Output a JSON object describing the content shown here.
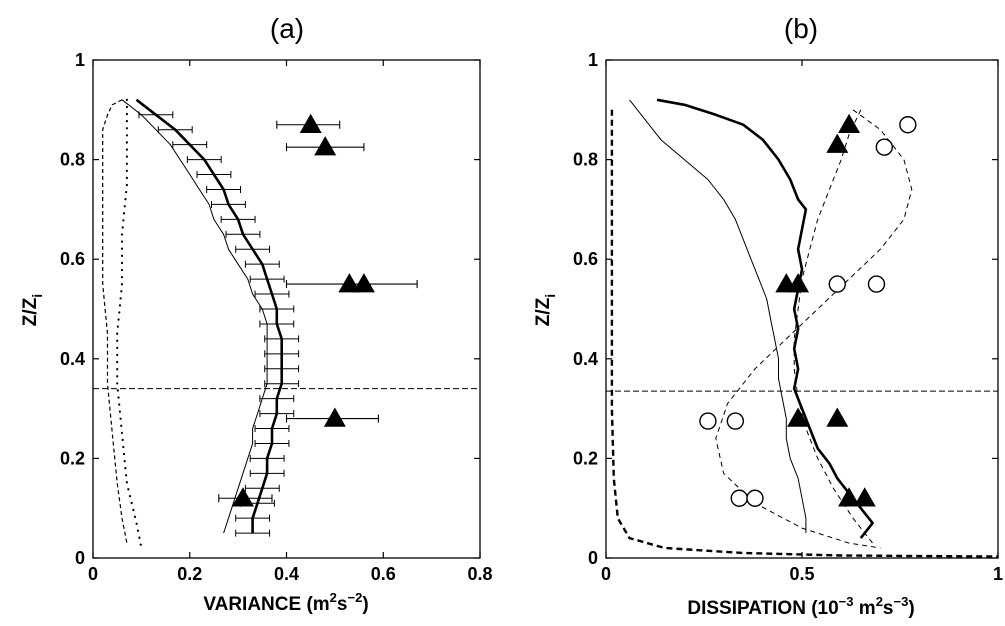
{
  "chart_data": [
    {
      "type": "line",
      "panel_label": "(a)",
      "xlabel_main": "VARIANCE (m",
      "xlabel_sup1": "2",
      "xlabel_mid": "s",
      "xlabel_sup2": "−2",
      "xlabel_end": ")",
      "ylabel_main": "Z/Z",
      "ylabel_sub": "i",
      "xlim": [
        0,
        0.8
      ],
      "ylim": [
        0,
        1
      ],
      "xticks": [
        "0",
        "0.2",
        "0.4",
        "0.6",
        "0.8"
      ],
      "yticks": [
        "0",
        "0.2",
        "0.4",
        "0.6",
        "0.8",
        "1"
      ],
      "xtick_values": [
        0,
        0.2,
        0.4,
        0.6,
        0.8
      ],
      "ytick_values": [
        0,
        0.2,
        0.4,
        0.6,
        0.8,
        1
      ],
      "hline_y": 0.34,
      "series": [
        {
          "style": "thick-solid",
          "points": [
            [
              0.09,
              0.92
            ],
            [
              0.13,
              0.89
            ],
            [
              0.17,
              0.86
            ],
            [
              0.2,
              0.83
            ],
            [
              0.23,
              0.8
            ],
            [
              0.25,
              0.77
            ],
            [
              0.27,
              0.74
            ],
            [
              0.28,
              0.71
            ],
            [
              0.3,
              0.68
            ],
            [
              0.31,
              0.65
            ],
            [
              0.33,
              0.62
            ],
            [
              0.35,
              0.59
            ],
            [
              0.36,
              0.56
            ],
            [
              0.37,
              0.53
            ],
            [
              0.38,
              0.5
            ],
            [
              0.38,
              0.47
            ],
            [
              0.39,
              0.44
            ],
            [
              0.39,
              0.41
            ],
            [
              0.39,
              0.38
            ],
            [
              0.39,
              0.35
            ],
            [
              0.38,
              0.32
            ],
            [
              0.38,
              0.29
            ],
            [
              0.37,
              0.26
            ],
            [
              0.37,
              0.23
            ],
            [
              0.36,
              0.2
            ],
            [
              0.36,
              0.17
            ],
            [
              0.35,
              0.14
            ],
            [
              0.34,
              0.11
            ],
            [
              0.33,
              0.08
            ],
            [
              0.33,
              0.05
            ]
          ]
        },
        {
          "style": "thin-solid",
          "points": [
            [
              0.06,
              0.92
            ],
            [
              0.1,
              0.89
            ],
            [
              0.13,
              0.86
            ],
            [
              0.16,
              0.83
            ],
            [
              0.18,
              0.8
            ],
            [
              0.2,
              0.77
            ],
            [
              0.22,
              0.74
            ],
            [
              0.24,
              0.71
            ],
            [
              0.25,
              0.68
            ],
            [
              0.27,
              0.65
            ],
            [
              0.28,
              0.62
            ],
            [
              0.3,
              0.59
            ],
            [
              0.32,
              0.56
            ],
            [
              0.33,
              0.53
            ],
            [
              0.35,
              0.5
            ],
            [
              0.36,
              0.47
            ],
            [
              0.36,
              0.44
            ],
            [
              0.36,
              0.41
            ],
            [
              0.36,
              0.38
            ],
            [
              0.36,
              0.35
            ],
            [
              0.35,
              0.32
            ],
            [
              0.34,
              0.29
            ],
            [
              0.33,
              0.26
            ],
            [
              0.33,
              0.23
            ],
            [
              0.32,
              0.2
            ],
            [
              0.31,
              0.17
            ],
            [
              0.3,
              0.14
            ],
            [
              0.29,
              0.11
            ],
            [
              0.28,
              0.08
            ],
            [
              0.27,
              0.05
            ]
          ]
        },
        {
          "style": "dashed",
          "points": [
            [
              0.06,
              0.92
            ],
            [
              0.04,
              0.91
            ],
            [
              0.03,
              0.89
            ],
            [
              0.02,
              0.86
            ],
            [
              0.02,
              0.82
            ],
            [
              0.02,
              0.75
            ],
            [
              0.02,
              0.65
            ],
            [
              0.02,
              0.55
            ],
            [
              0.03,
              0.45
            ],
            [
              0.03,
              0.35
            ],
            [
              0.04,
              0.25
            ],
            [
              0.05,
              0.15
            ],
            [
              0.06,
              0.08
            ],
            [
              0.07,
              0.03
            ]
          ]
        },
        {
          "style": "dotted",
          "points": [
            [
              0.07,
              0.92
            ],
            [
              0.07,
              0.85
            ],
            [
              0.07,
              0.75
            ],
            [
              0.06,
              0.65
            ],
            [
              0.06,
              0.55
            ],
            [
              0.05,
              0.45
            ],
            [
              0.05,
              0.35
            ],
            [
              0.06,
              0.25
            ],
            [
              0.07,
              0.15
            ],
            [
              0.09,
              0.07
            ],
            [
              0.1,
              0.02
            ]
          ]
        }
      ],
      "errorbars": {
        "y": [
          0.89,
          0.86,
          0.83,
          0.8,
          0.77,
          0.74,
          0.71,
          0.68,
          0.65,
          0.62,
          0.59,
          0.56,
          0.53,
          0.5,
          0.47,
          0.44,
          0.41,
          0.38,
          0.35,
          0.32,
          0.29,
          0.26,
          0.23,
          0.2,
          0.17,
          0.14,
          0.11,
          0.08,
          0.05
        ],
        "x_center": [
          0.13,
          0.17,
          0.2,
          0.23,
          0.25,
          0.27,
          0.28,
          0.3,
          0.31,
          0.33,
          0.35,
          0.36,
          0.37,
          0.38,
          0.38,
          0.39,
          0.39,
          0.39,
          0.39,
          0.38,
          0.38,
          0.37,
          0.37,
          0.36,
          0.36,
          0.35,
          0.34,
          0.33,
          0.33
        ],
        "half_width": 0.035
      },
      "markers": [
        {
          "shape": "triangle",
          "x": 0.45,
          "y": 0.87,
          "err": [
            0.38,
            0.51
          ]
        },
        {
          "shape": "triangle",
          "x": 0.48,
          "y": 0.825,
          "err": [
            0.4,
            0.56
          ]
        },
        {
          "shape": "triangle",
          "x": 0.53,
          "y": 0.55,
          "err": [
            0.4,
            0.67
          ]
        },
        {
          "shape": "triangle",
          "x": 0.56,
          "y": 0.55,
          "err": null
        },
        {
          "shape": "triangle",
          "x": 0.5,
          "y": 0.28,
          "err": [
            0.4,
            0.59
          ]
        },
        {
          "shape": "triangle",
          "x": 0.31,
          "y": 0.12,
          "err": [
            0.26,
            0.37
          ]
        }
      ]
    },
    {
      "type": "line",
      "panel_label": "(b)",
      "xlabel_main": "DISSIPATION (10",
      "xlabel_sup1": "−3",
      "xlabel_mid": " m",
      "xlabel_sup2": "2",
      "xlabel_mid2": "s",
      "xlabel_sup3": "−3",
      "xlabel_end": ")",
      "ylabel_main": "Z/Z",
      "ylabel_sub": "i",
      "xlim": [
        0,
        1
      ],
      "ylim": [
        0,
        1
      ],
      "xticks": [
        "0",
        "0.5",
        "1"
      ],
      "yticks": [
        "0",
        "0.2",
        "0.4",
        "0.6",
        "0.8",
        "1"
      ],
      "xtick_values": [
        0,
        0.5,
        1
      ],
      "ytick_values": [
        0,
        0.2,
        0.4,
        0.6,
        0.8,
        1
      ],
      "hline_y": 0.335,
      "series": [
        {
          "style": "thick-solid",
          "points": [
            [
              0.13,
              0.92
            ],
            [
              0.2,
              0.91
            ],
            [
              0.28,
              0.89
            ],
            [
              0.35,
              0.87
            ],
            [
              0.4,
              0.84
            ],
            [
              0.44,
              0.8
            ],
            [
              0.47,
              0.76
            ],
            [
              0.49,
              0.72
            ],
            [
              0.51,
              0.7
            ],
            [
              0.5,
              0.66
            ],
            [
              0.49,
              0.62
            ],
            [
              0.5,
              0.58
            ],
            [
              0.49,
              0.54
            ],
            [
              0.48,
              0.5
            ],
            [
              0.49,
              0.46
            ],
            [
              0.48,
              0.42
            ],
            [
              0.49,
              0.38
            ],
            [
              0.48,
              0.34
            ],
            [
              0.5,
              0.3
            ],
            [
              0.52,
              0.26
            ],
            [
              0.54,
              0.22
            ],
            [
              0.57,
              0.19
            ],
            [
              0.59,
              0.16
            ],
            [
              0.62,
              0.13
            ],
            [
              0.65,
              0.1
            ],
            [
              0.68,
              0.07
            ],
            [
              0.65,
              0.04
            ]
          ]
        },
        {
          "style": "thin-solid",
          "points": [
            [
              0.06,
              0.92
            ],
            [
              0.1,
              0.88
            ],
            [
              0.14,
              0.84
            ],
            [
              0.2,
              0.8
            ],
            [
              0.26,
              0.76
            ],
            [
              0.3,
              0.72
            ],
            [
              0.33,
              0.68
            ],
            [
              0.35,
              0.64
            ],
            [
              0.37,
              0.6
            ],
            [
              0.39,
              0.56
            ],
            [
              0.41,
              0.52
            ],
            [
              0.42,
              0.48
            ],
            [
              0.43,
              0.44
            ],
            [
              0.44,
              0.4
            ],
            [
              0.44,
              0.36
            ],
            [
              0.45,
              0.32
            ],
            [
              0.46,
              0.28
            ],
            [
              0.46,
              0.24
            ],
            [
              0.47,
              0.2
            ],
            [
              0.49,
              0.16
            ],
            [
              0.5,
              0.12
            ],
            [
              0.51,
              0.08
            ],
            [
              0.51,
              0.05
            ]
          ]
        },
        {
          "style": "thin-dashed",
          "points": [
            [
              0.63,
              0.9
            ],
            [
              0.7,
              0.86
            ],
            [
              0.76,
              0.8
            ],
            [
              0.78,
              0.74
            ],
            [
              0.76,
              0.68
            ],
            [
              0.7,
              0.62
            ],
            [
              0.62,
              0.56
            ],
            [
              0.54,
              0.5
            ],
            [
              0.46,
              0.44
            ],
            [
              0.38,
              0.38
            ],
            [
              0.31,
              0.31
            ],
            [
              0.28,
              0.24
            ],
            [
              0.3,
              0.17
            ],
            [
              0.38,
              0.11
            ],
            [
              0.5,
              0.06
            ],
            [
              0.62,
              0.03
            ],
            [
              0.7,
              0.02
            ]
          ]
        },
        {
          "style": "thin-dashed",
          "points": [
            [
              0.65,
              0.9
            ],
            [
              0.62,
              0.85
            ],
            [
              0.6,
              0.8
            ],
            [
              0.57,
              0.74
            ],
            [
              0.54,
              0.68
            ],
            [
              0.52,
              0.62
            ],
            [
              0.5,
              0.56
            ],
            [
              0.49,
              0.5
            ],
            [
              0.48,
              0.44
            ],
            [
              0.48,
              0.38
            ],
            [
              0.49,
              0.32
            ],
            [
              0.51,
              0.26
            ],
            [
              0.54,
              0.2
            ],
            [
              0.58,
              0.14
            ],
            [
              0.63,
              0.08
            ],
            [
              0.68,
              0.03
            ]
          ]
        },
        {
          "style": "thick-dashed",
          "points": [
            [
              0.015,
              0.9
            ],
            [
              0.015,
              0.7
            ],
            [
              0.015,
              0.5
            ],
            [
              0.015,
              0.3
            ],
            [
              0.02,
              0.16
            ],
            [
              0.03,
              0.08
            ],
            [
              0.06,
              0.04
            ],
            [
              0.15,
              0.02
            ],
            [
              0.35,
              0.01
            ],
            [
              0.6,
              0.005
            ],
            [
              1.0,
              0.003
            ]
          ]
        }
      ],
      "markers": [
        {
          "shape": "triangle",
          "x": 0.59,
          "y": 0.83
        },
        {
          "shape": "triangle",
          "x": 0.62,
          "y": 0.87
        },
        {
          "shape": "triangle",
          "x": 0.46,
          "y": 0.55
        },
        {
          "shape": "triangle",
          "x": 0.49,
          "y": 0.55
        },
        {
          "shape": "triangle",
          "x": 0.49,
          "y": 0.28
        },
        {
          "shape": "triangle",
          "x": 0.59,
          "y": 0.28
        },
        {
          "shape": "triangle",
          "x": 0.62,
          "y": 0.12
        },
        {
          "shape": "triangle",
          "x": 0.66,
          "y": 0.12
        },
        {
          "shape": "circle",
          "x": 0.71,
          "y": 0.825
        },
        {
          "shape": "circle",
          "x": 0.77,
          "y": 0.87
        },
        {
          "shape": "circle",
          "x": 0.59,
          "y": 0.55
        },
        {
          "shape": "circle",
          "x": 0.69,
          "y": 0.55
        },
        {
          "shape": "circle",
          "x": 0.26,
          "y": 0.275
        },
        {
          "shape": "circle",
          "x": 0.33,
          "y": 0.275
        },
        {
          "shape": "circle",
          "x": 0.34,
          "y": 0.12
        },
        {
          "shape": "circle",
          "x": 0.38,
          "y": 0.12
        }
      ]
    }
  ]
}
